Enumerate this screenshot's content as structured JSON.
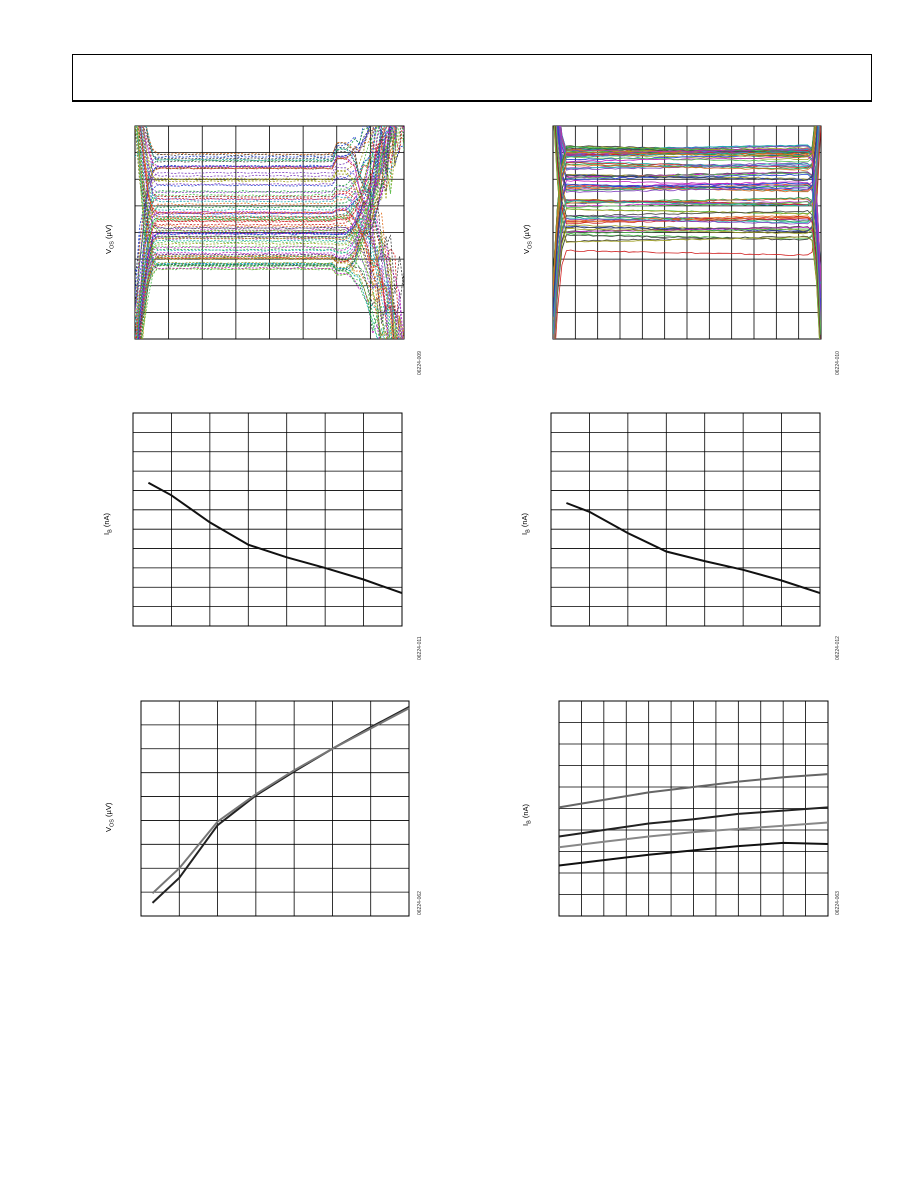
{
  "page": {
    "header_text": ""
  },
  "chart_data": [
    {
      "id": "chart1",
      "type": "line",
      "title": "",
      "xlabel": "",
      "ylabel": "VOS (µV)",
      "ylabel_main": "V",
      "ylabel_sub": "OS",
      "ylabel_rest": " (µV)",
      "figure_id": "06224-009",
      "grid": true,
      "x": [
        0,
        1,
        2,
        3,
        4,
        5,
        6,
        7,
        8,
        9,
        10
      ],
      "xlim": [
        0,
        10
      ],
      "ylim": [
        0,
        8
      ],
      "series_count": 90,
      "series_style": "multicolor dotted",
      "description": "Many units; flat in center, diverging at both edges",
      "colors": [
        "#d02020",
        "#2040d0",
        "#20a040",
        "#c020c0",
        "#20b0b0",
        "#a0a020",
        "#e07020",
        "#404040",
        "#8040c0",
        "#50c050"
      ]
    },
    {
      "id": "chart2",
      "type": "line",
      "title": "",
      "xlabel": "",
      "ylabel": "VOS (µV)",
      "ylabel_main": "V",
      "ylabel_sub": "OS",
      "ylabel_rest": " (µV)",
      "figure_id": "06224-010",
      "grid": true,
      "x": [
        0,
        1,
        2,
        3,
        4,
        5,
        6,
        7,
        8,
        9,
        10
      ],
      "xlim": [
        0,
        10
      ],
      "ylim": [
        0,
        8
      ],
      "series_count": 90,
      "series_style": "multicolor solid",
      "colors": [
        "#d02020",
        "#2040d0",
        "#20a040",
        "#c020c0",
        "#20b0b0",
        "#a0a020",
        "#e07020",
        "#404040",
        "#8040c0",
        "#50c050"
      ]
    },
    {
      "id": "chart3",
      "type": "line",
      "title": "",
      "xlabel": "",
      "ylabel": "IB (nA)",
      "ylabel_main": "I",
      "ylabel_sub": "B",
      "ylabel_rest": " (nA)",
      "figure_id": "06224-011",
      "grid": true,
      "xlim": [
        0,
        7
      ],
      "ylim": [
        0,
        11
      ],
      "series": [
        {
          "name": "",
          "x": [
            0.4,
            1.0,
            2.0,
            3.0,
            4.0,
            5.0,
            6.0,
            7.0
          ],
          "y": [
            7.4,
            6.75,
            5.35,
            4.2,
            3.55,
            3.0,
            2.4,
            1.7
          ]
        }
      ]
    },
    {
      "id": "chart4",
      "type": "line",
      "title": "",
      "xlabel": "",
      "ylabel": "IB (nA)",
      "ylabel_main": "I",
      "ylabel_sub": "B",
      "ylabel_rest": " (nA)",
      "figure_id": "06224-012",
      "grid": true,
      "xlim": [
        0,
        7
      ],
      "ylim": [
        0,
        11
      ],
      "series": [
        {
          "name": "",
          "x": [
            0.4,
            1.0,
            2.0,
            3.0,
            4.0,
            5.0,
            6.0,
            7.0
          ],
          "y": [
            6.35,
            5.9,
            4.8,
            3.85,
            3.35,
            2.9,
            2.35,
            1.7
          ]
        }
      ]
    },
    {
      "id": "chart5",
      "type": "line",
      "title": "",
      "xlabel": "",
      "ylabel": "VOS (µV)",
      "ylabel_main": "V",
      "ylabel_sub": "OS",
      "ylabel_rest": " (µV)",
      "figure_id": "06224-062",
      "grid": true,
      "xlim": [
        0,
        7
      ],
      "ylim": [
        0,
        9
      ],
      "series": [
        {
          "name": "",
          "color": "#222222",
          "x": [
            0.3,
            1.0,
            2.0,
            3.0,
            4.0,
            5.0,
            6.0,
            7.0
          ],
          "y": [
            0.55,
            1.6,
            3.8,
            5.05,
            6.05,
            7.0,
            7.9,
            8.75
          ]
        },
        {
          "name": "",
          "color": "#777777",
          "x": [
            0.3,
            1.0,
            2.0,
            3.0,
            4.0,
            5.0,
            6.0,
            7.0
          ],
          "y": [
            0.95,
            2.0,
            3.95,
            5.1,
            6.1,
            7.0,
            7.85,
            8.7
          ]
        }
      ]
    },
    {
      "id": "chart6",
      "type": "line",
      "title": "",
      "xlabel": "",
      "ylabel": "IB (nA)",
      "ylabel_main": "I",
      "ylabel_sub": "B",
      "ylabel_rest": " (nA)",
      "figure_id": "06224-063",
      "grid": true,
      "xlim": [
        0,
        12
      ],
      "ylim": [
        0,
        10
      ],
      "series": [
        {
          "name": "",
          "color": "#666666",
          "x": [
            0,
            2,
            4,
            6,
            8,
            10,
            12
          ],
          "y": [
            5.05,
            5.4,
            5.75,
            6.0,
            6.25,
            6.45,
            6.6
          ]
        },
        {
          "name": "",
          "color": "#222222",
          "x": [
            0,
            2,
            4,
            6,
            8,
            10,
            12
          ],
          "y": [
            3.7,
            4.0,
            4.3,
            4.5,
            4.75,
            4.9,
            5.05
          ]
        },
        {
          "name": "",
          "color": "#888888",
          "x": [
            0,
            2,
            4,
            6,
            8,
            10,
            12
          ],
          "y": [
            3.2,
            3.45,
            3.7,
            3.9,
            4.05,
            4.2,
            4.35
          ]
        },
        {
          "name": "",
          "color": "#111111",
          "x": [
            0,
            2,
            4,
            6,
            8,
            10,
            12
          ],
          "y": [
            2.35,
            2.6,
            2.85,
            3.05,
            3.25,
            3.4,
            3.35
          ]
        }
      ]
    }
  ]
}
